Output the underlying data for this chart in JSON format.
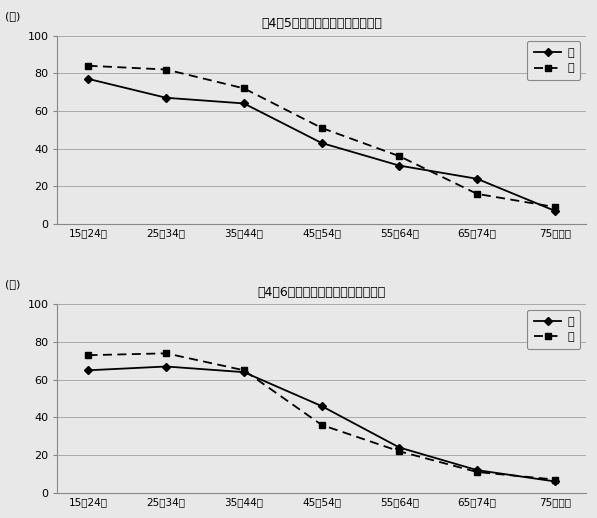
{
  "chart1": {
    "title": "図4－5　ＣＤなどによる音楽鑑賞",
    "ylabel": "(％)",
    "categories": [
      "15－24歳",
      "25－34歳",
      "35－44歳",
      "45－54歳",
      "55－64歳",
      "65－74歳",
      "75歳以上"
    ],
    "male": [
      77,
      67,
      64,
      43,
      31,
      24,
      7
    ],
    "female": [
      84,
      82,
      72,
      51,
      36,
      16,
      9
    ],
    "ylim": [
      0,
      100
    ],
    "yticks": [
      0,
      20,
      40,
      60,
      80,
      100
    ]
  },
  "chart2": {
    "title": "図4－6　ＤＶＤなどによる映画鑑賞",
    "ylabel": "(％)",
    "categories": [
      "15－24歳",
      "25－34歳",
      "35－44歳",
      "45－54歳",
      "55－64歳",
      "65－74歳",
      "75歳以上"
    ],
    "male": [
      65,
      67,
      64,
      46,
      24,
      12,
      6
    ],
    "female": [
      73,
      74,
      65,
      36,
      22,
      11,
      7
    ],
    "ylim": [
      0,
      100
    ],
    "yticks": [
      0,
      20,
      40,
      60,
      80,
      100
    ]
  },
  "legend_male": "男",
  "legend_female": "女",
  "bg_color": "#e8e8e8",
  "plot_bg": "#e8e8e8"
}
